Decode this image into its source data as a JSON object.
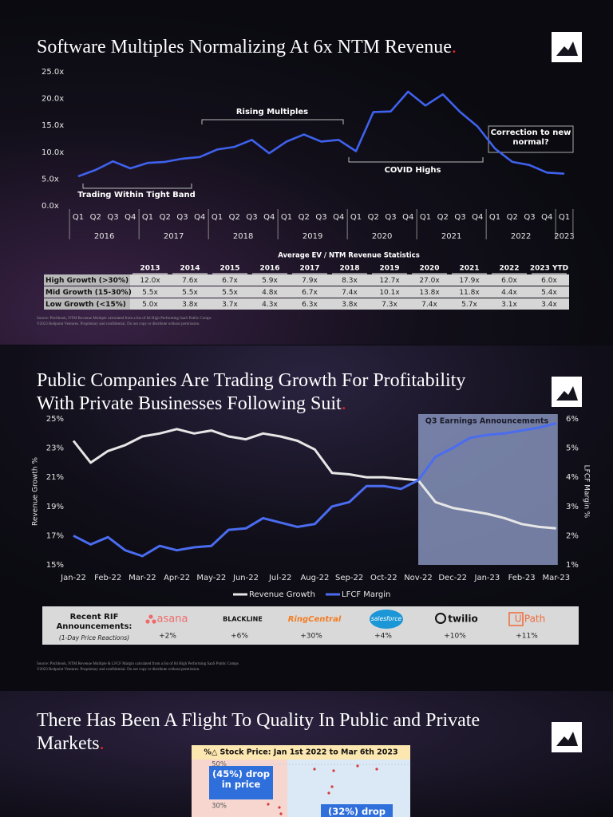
{
  "chart_data": [
    {
      "type": "line",
      "title": [
        "Software Multiples Normalizing At 6x NTM Revenue."
      ],
      "categories": [
        "Q1",
        "Q2",
        "Q3",
        "Q4",
        "Q1",
        "Q2",
        "Q3",
        "Q4",
        "Q1",
        "Q2",
        "Q3",
        "Q4",
        "Q1",
        "Q2",
        "Q3",
        "Q4",
        "Q1",
        "Q2",
        "Q3",
        "Q4",
        "Q1",
        "Q2",
        "Q3",
        "Q4",
        "Q1",
        "Q2",
        "Q3",
        "Q4",
        "Q1"
      ],
      "x_groups": [
        "2016",
        "2017",
        "2018",
        "2019",
        "2020",
        "2021",
        "2022",
        "2023"
      ],
      "values": [
        5.5,
        6.7,
        8.3,
        7.0,
        8.0,
        8.2,
        8.8,
        9.1,
        10.5,
        11.0,
        12.3,
        9.8,
        12.0,
        13.3,
        12.0,
        12.3,
        10.2,
        17.5,
        17.6,
        21.3,
        18.7,
        20.8,
        17.5,
        14.8,
        10.7,
        8.2,
        7.6,
        6.2,
        6.0
      ],
      "color": "#3f62ee",
      "ylim": [
        0,
        25
      ],
      "yticks": [
        {
          "value": 0,
          "label": "0.0x"
        },
        {
          "value": 5,
          "label": "5.0x"
        },
        {
          "value": 10,
          "label": "10.0x"
        },
        {
          "value": 15,
          "label": "15.0x"
        },
        {
          "value": 20,
          "label": "20.0x"
        },
        {
          "value": 25,
          "label": "25.0x"
        }
      ],
      "annotations": [
        "Rising Multiples",
        "COVID Highs",
        "Correction to new normal?",
        "Trading Within Tight Band"
      ]
    },
    {
      "type": "line",
      "title": [
        "Public Companies Are Trading Growth For Profitability",
        "With Private Businesses Following Suit."
      ],
      "categories": [
        "Jan-22",
        null,
        "Feb-22",
        null,
        "Mar-22",
        null,
        "Apr-22",
        null,
        "May-22",
        null,
        "Jun-22",
        null,
        "Jul-22",
        null,
        "Aug-22",
        null,
        "Sep-22",
        null,
        "Oct-22",
        null,
        "Nov-22",
        null,
        "Dec-22",
        null,
        "Jan-23",
        null,
        "Feb-23",
        null,
        "Mar-23"
      ],
      "series": [
        {
          "name": "Revenue Growth",
          "color": "#e6e6e6",
          "values": [
            23.5,
            22.0,
            22.8,
            23.2,
            23.8,
            24.0,
            24.3,
            24.0,
            24.2,
            23.8,
            23.6,
            24.0,
            23.8,
            23.5,
            22.9,
            21.3,
            21.2,
            21.0,
            21.0,
            20.9,
            20.8,
            19.3,
            18.9,
            18.7,
            18.5,
            18.2,
            17.8,
            17.6,
            17.5
          ]
        },
        {
          "name": "LFCF Margin",
          "color": "#4a6cf0",
          "axis": "y2",
          "values": [
            2.0,
            1.7,
            1.95,
            1.5,
            1.3,
            1.65,
            1.5,
            1.6,
            1.65,
            2.2,
            2.25,
            2.6,
            2.45,
            2.3,
            2.4,
            3.0,
            3.15,
            3.7,
            3.7,
            3.6,
            3.9,
            4.7,
            5.0,
            5.35,
            5.45,
            5.5,
            5.6,
            5.7,
            5.85
          ]
        }
      ],
      "ylabel": "Revenue Growth %",
      "y2label": "LFCF Margin %",
      "ylim": [
        15,
        25
      ],
      "yticks": [
        {
          "value": 15,
          "label": "15%"
        },
        {
          "value": 17,
          "label": "17%"
        },
        {
          "value": 19,
          "label": "19%"
        },
        {
          "value": 21,
          "label": "21%"
        },
        {
          "value": 23,
          "label": "23%"
        },
        {
          "value": 25,
          "label": "25%"
        }
      ],
      "y2lim": [
        1,
        6
      ],
      "y2ticks": [
        {
          "value": 1,
          "label": "1%"
        },
        {
          "value": 2,
          "label": "2%"
        },
        {
          "value": 3,
          "label": "3%"
        },
        {
          "value": 4,
          "label": "4%"
        },
        {
          "value": 5,
          "label": "5%"
        },
        {
          "value": 6,
          "label": "6%"
        }
      ],
      "annotations": [
        "Q3 Earnings Announcements"
      ],
      "legend": "bottom"
    },
    {
      "type": "scatter",
      "title": [
        "There Has Been A Flight To Quality In Public and Private",
        "Markets."
      ],
      "subtitle": "%△ Stock Price: Jan 1st 2022 to Mar 6th 2023",
      "yticks": [
        {
          "value": 50,
          "label": "50%"
        },
        {
          "value": 30,
          "label": "30%"
        }
      ],
      "annotations": [
        "(45%) drop in price",
        "(32%) drop"
      ]
    }
  ],
  "table": {
    "title": "Average EV / NTM Revenue Statistics",
    "columns": [
      "2013",
      "2014",
      "2015",
      "2016",
      "2017",
      "2018",
      "2019",
      "2020",
      "2021",
      "2022",
      "2023 YTD"
    ],
    "rows": [
      [
        "High Growth (>30%)",
        "12.0x",
        "7.6x",
        "6.7x",
        "5.9x",
        "7.9x",
        "8.3x",
        "12.7x",
        "27.0x",
        "17.9x",
        "6.0x",
        "6.0x"
      ],
      [
        "Mid Growth (15-30%)",
        "5.5x",
        "5.5x",
        "5.5x",
        "4.8x",
        "6.7x",
        "7.4x",
        "10.1x",
        "13.8x",
        "11.8x",
        "4.4x",
        "5.4x"
      ],
      [
        "Low Growth (<15%)",
        "5.0x",
        "3.8x",
        "3.7x",
        "4.3x",
        "6.3x",
        "3.8x",
        "7.3x",
        "7.4x",
        "5.7x",
        "3.1x",
        "3.4x"
      ]
    ]
  },
  "rif": {
    "heading": "Recent RIF Announcements:",
    "note": "(1-Day Price Reactions)",
    "companies": [
      {
        "name": "asana",
        "change": "+2%"
      },
      {
        "name": "BLACKLINE",
        "change": "+6%"
      },
      {
        "name": "RingCentral",
        "change": "+30%"
      },
      {
        "name": "salesforce",
        "change": "+4%"
      },
      {
        "name": "twilio",
        "change": "+10%"
      },
      {
        "name": "UiPath",
        "change": "+11%"
      }
    ]
  },
  "sources": [
    [
      "Source: Pitchbook, NTM Revenue Multiple calculated from a list of 84 High Performing SaaS Public Comps",
      "©2023 Redpoint Ventures. Proprietary and confidential. Do not copy or distribute without permission."
    ],
    [
      "Source: Pitchbook, NTM Revenue Multiple & LFCF Margin calculated from a list of 84 High Performing SaaS Public Comps",
      "©2023 Redpoint Ventures. Proprietary and confidential. Do not copy or distribute without permission."
    ]
  ]
}
